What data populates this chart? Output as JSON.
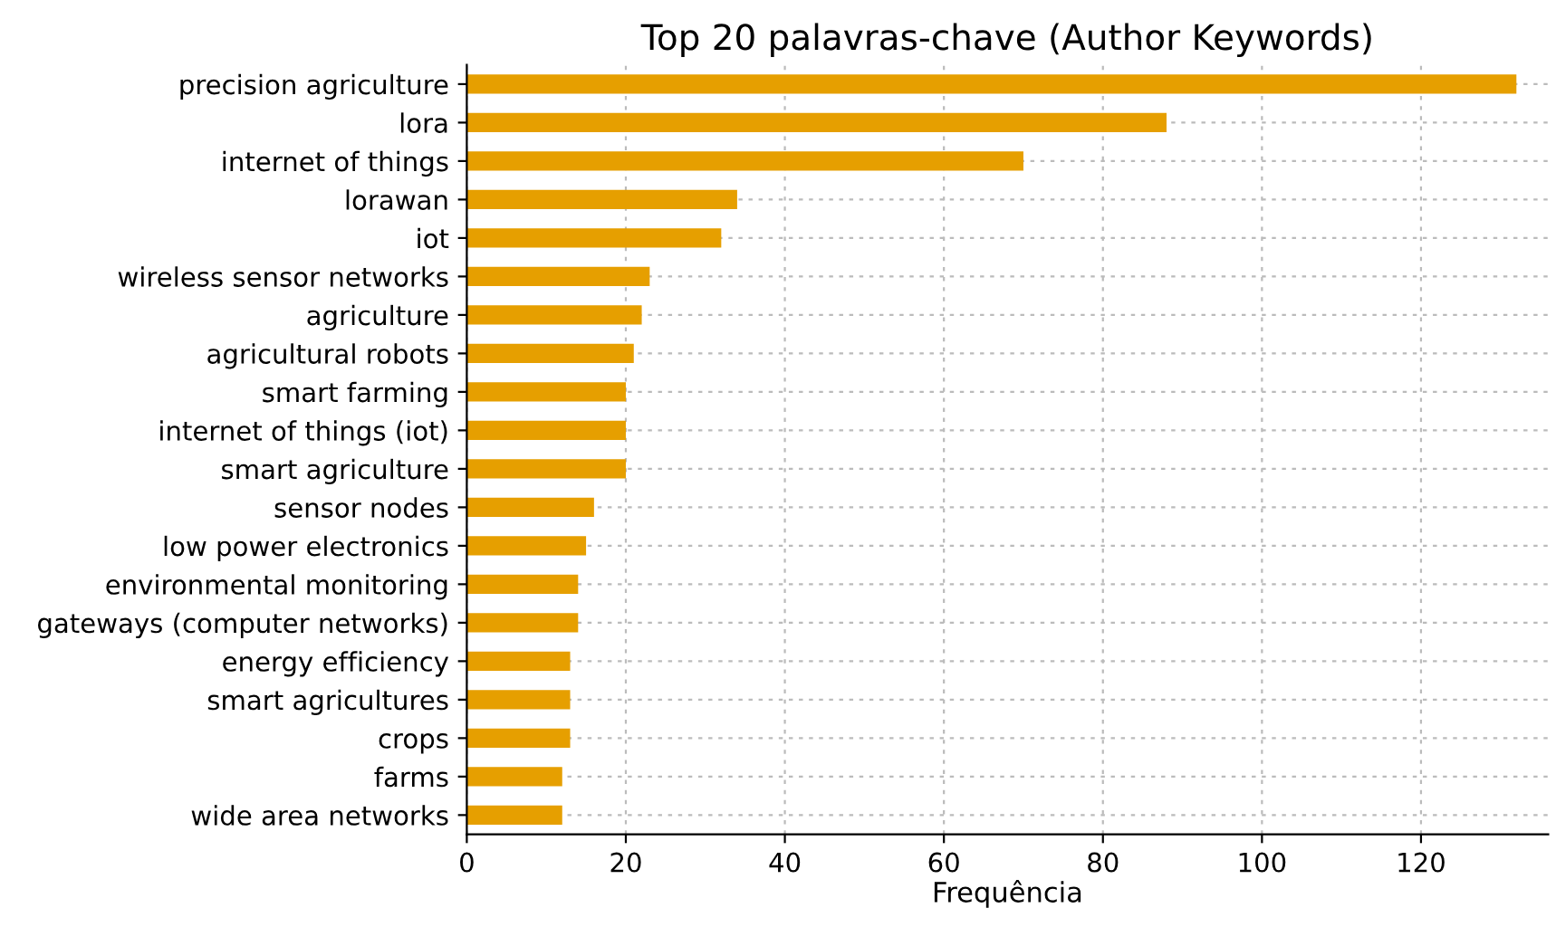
{
  "chart_data": {
    "type": "bar",
    "orientation": "horizontal",
    "title": "Top 20 palavras-chave (Author Keywords)",
    "xlabel": "Frequência",
    "categories": [
      "precision agriculture",
      "lora",
      "internet of things",
      "lorawan",
      "iot",
      "wireless sensor networks",
      "agriculture",
      "agricultural robots",
      "smart farming",
      "internet of things (iot)",
      "smart agriculture",
      "sensor nodes",
      "low power electronics",
      "environmental monitoring",
      "gateways (computer networks)",
      "energy efficiency",
      "smart agricultures",
      "crops",
      "farms",
      "wide area networks"
    ],
    "values": [
      132,
      88,
      70,
      34,
      32,
      23,
      22,
      21,
      20,
      20,
      20,
      16,
      15,
      14,
      14,
      13,
      13,
      13,
      12,
      12
    ],
    "color": "#e69f00",
    "xlim": [
      0,
      136
    ],
    "xticks": [
      0,
      20,
      40,
      60,
      80,
      100,
      120
    ],
    "grid": true
  }
}
